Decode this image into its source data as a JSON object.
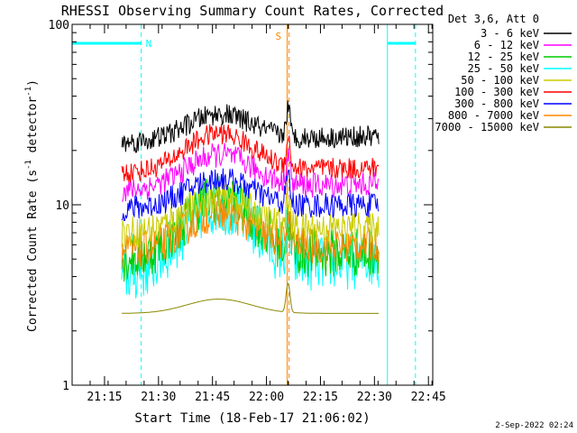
{
  "chart_data": {
    "type": "line",
    "title": "RHESSI Observing Summary Count Rates, Corrected",
    "xlabel": "Start Time (18-Feb-17 21:06:02)",
    "ylabel_main": "Corrected Count Rate (s",
    "ylabel_sup1": "-1",
    "ylabel_mid": " detector",
    "ylabel_sup2": "-1",
    "ylabel_end": ")",
    "yscale": "log",
    "ylim": [
      1,
      100
    ],
    "y_ticks": [
      {
        "value": 1,
        "label": "1"
      },
      {
        "value": 10,
        "label": "10"
      },
      {
        "value": 100,
        "label": "100"
      }
    ],
    "xlim_minutes": [
      21.1,
      22.77
    ],
    "x_ticks": [
      {
        "label": "21:15",
        "hour": 21.25
      },
      {
        "label": "21:30",
        "hour": 21.5
      },
      {
        "label": "21:45",
        "hour": 21.75
      },
      {
        "label": "22:00",
        "hour": 22.0
      },
      {
        "label": "22:15",
        "hour": 22.25
      },
      {
        "label": "22:30",
        "hour": 22.5
      },
      {
        "label": "22:45",
        "hour": 22.75
      }
    ],
    "data_range_hours": [
      21.33,
      22.52
    ],
    "legend_header": "Det 3,6, Att 0",
    "legend_position": "top-right outside",
    "series": [
      {
        "name": "3 - 6 keV",
        "color": "#000000",
        "start": 22,
        "peak": 32,
        "end": 24,
        "noise": 0.06
      },
      {
        "name": "6 - 12 keV",
        "color": "#ff00ff",
        "start": 12,
        "peak": 19,
        "end": 13,
        "noise": 0.07
      },
      {
        "name": "12 - 25 keV",
        "color": "#00cc00",
        "start": 5,
        "peak": 11,
        "end": 5.5,
        "noise": 0.14
      },
      {
        "name": "25 - 50 keV",
        "color": "#00ffff",
        "start": 4,
        "peak": 10,
        "end": 5,
        "noise": 0.16
      },
      {
        "name": "50 - 100 keV",
        "color": "#cccc00",
        "start": 7,
        "peak": 11,
        "end": 7.5,
        "noise": 0.09
      },
      {
        "name": "100 - 300 keV",
        "color": "#ff0000",
        "start": 15,
        "peak": 25,
        "end": 16,
        "noise": 0.06
      },
      {
        "name": "300 - 800 keV",
        "color": "#0000ff",
        "start": 9.5,
        "peak": 14,
        "end": 10,
        "noise": 0.07
      },
      {
        "name": "800 - 7000 keV",
        "color": "#ff8800",
        "start": 5.5,
        "peak": 9,
        "end": 6,
        "noise": 0.1
      },
      {
        "name": "7000 - 15000 keV",
        "color": "#888800",
        "start": 2.5,
        "peak": 3,
        "end": 2.5,
        "noise": 0.0
      }
    ],
    "annotations": {
      "night_label": "N",
      "saa_label": "S",
      "night_bars": [
        [
          21.1,
          21.42
        ],
        [
          22.56,
          22.69
        ]
      ],
      "vlines_cyan_solid": [
        21.1,
        22.56
      ],
      "vlines_cyan_dashed": [
        21.42,
        22.69
      ],
      "saa_line_hour": 22.1,
      "flare_peak_hour": 22.1
    }
  },
  "footer": {
    "timestamp": "2-Sep-2022 02:24"
  }
}
